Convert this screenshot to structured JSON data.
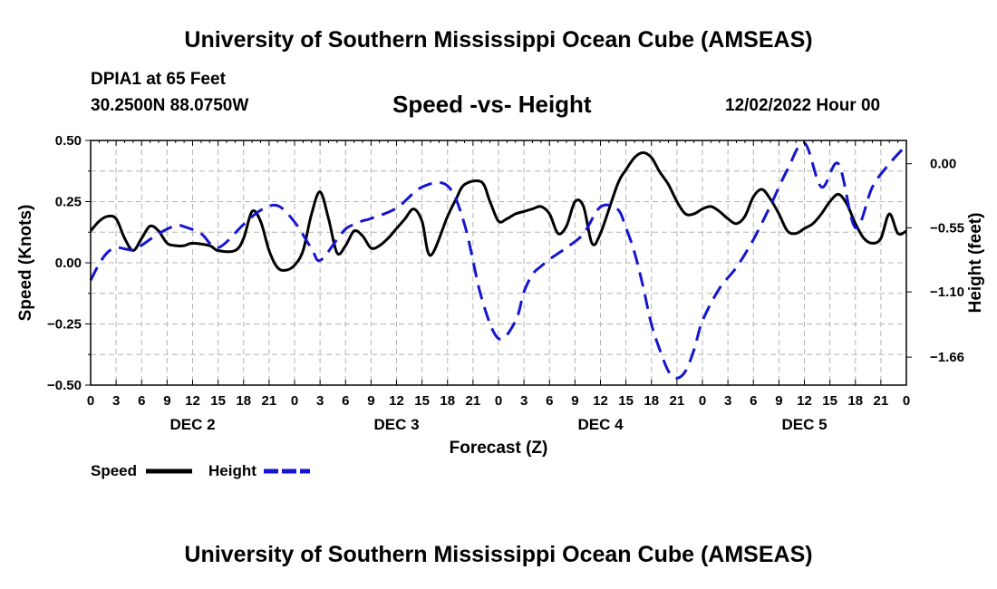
{
  "header": {
    "title": "University of Southern Mississippi Ocean Cube (AMSEAS)",
    "station": "DPIA1 at 65 Feet",
    "coordinates": "30.2500N  88.0750W",
    "chart_title": "Speed -vs- Height",
    "date": "12/02/2022 Hour 00"
  },
  "footer": {
    "title": "University of Southern Mississippi Ocean Cube (AMSEAS)"
  },
  "colors": {
    "speed": "#000000",
    "height": "#1515d0",
    "grid": "#b4b4b4"
  },
  "chart_data": {
    "type": "line",
    "title": "Speed -vs- Height",
    "xlabel": "Forecast (Z)",
    "ylabel": "Speed (Knots)",
    "y2label": "Height (feet)",
    "x_range": [
      0,
      96
    ],
    "ylim": [
      -0.5,
      0.5
    ],
    "y_ticks": [
      "0.50",
      "0.25",
      "0.00",
      "−0.25",
      "−0.50"
    ],
    "y_tick_values": [
      0.5,
      0.25,
      0.0,
      -0.25,
      -0.5
    ],
    "y2lim": [
      -1.9,
      0.2
    ],
    "y2_ticks": [
      "0.00",
      "−0.55",
      "−1.10",
      "−1.66"
    ],
    "y2_tick_values": [
      0.0,
      -0.55,
      -1.1,
      -1.66
    ],
    "x_tick_labels": [
      "0",
      "3",
      "6",
      "9",
      "12",
      "15",
      "18",
      "21",
      "0",
      "3",
      "6",
      "9",
      "12",
      "15",
      "18",
      "21",
      "0",
      "3",
      "6",
      "9",
      "12",
      "15",
      "18",
      "21",
      "0",
      "3",
      "6",
      "9",
      "12",
      "15",
      "18",
      "21",
      "0"
    ],
    "day_labels": [
      "DEC 2",
      "DEC 3",
      "DEC 4",
      "DEC 5"
    ],
    "grid": true,
    "legend": [
      {
        "name": "Speed",
        "style": "solid"
      },
      {
        "name": "Height",
        "style": "dashed"
      }
    ],
    "series": [
      {
        "name": "Speed",
        "axis": "left",
        "x": [
          0,
          1,
          2,
          3,
          4,
          5,
          6,
          7,
          8,
          9,
          10,
          11,
          12,
          14,
          15,
          17,
          18,
          19,
          20,
          21,
          22,
          23,
          24,
          25,
          26,
          27,
          28,
          29,
          30,
          31,
          32,
          33,
          34,
          35,
          36,
          37,
          38,
          39,
          40,
          42,
          43,
          44,
          46,
          47,
          48,
          49,
          50,
          51,
          52,
          53,
          54,
          55,
          56,
          57,
          58,
          59,
          60,
          62,
          63,
          64,
          65,
          66,
          67,
          68,
          69,
          70,
          71,
          72,
          73,
          74,
          75,
          76,
          77,
          78,
          79,
          80,
          81,
          82,
          83,
          84,
          85,
          86,
          87,
          88,
          89,
          90,
          91,
          92,
          93,
          94,
          95,
          96
        ],
        "values": [
          0.13,
          0.17,
          0.19,
          0.18,
          0.1,
          0.05,
          0.1,
          0.15,
          0.13,
          0.08,
          0.07,
          0.07,
          0.08,
          0.07,
          0.05,
          0.05,
          0.1,
          0.21,
          0.17,
          0.05,
          -0.02,
          -0.03,
          -0.01,
          0.05,
          0.2,
          0.29,
          0.18,
          0.04,
          0.07,
          0.13,
          0.11,
          0.06,
          0.07,
          0.1,
          0.14,
          0.18,
          0.22,
          0.17,
          0.03,
          0.19,
          0.26,
          0.32,
          0.33,
          0.25,
          0.17,
          0.18,
          0.2,
          0.21,
          0.22,
          0.23,
          0.2,
          0.12,
          0.15,
          0.25,
          0.23,
          0.08,
          0.12,
          0.32,
          0.38,
          0.43,
          0.45,
          0.43,
          0.37,
          0.32,
          0.25,
          0.2,
          0.2,
          0.22,
          0.23,
          0.21,
          0.18,
          0.16,
          0.19,
          0.27,
          0.3,
          0.26,
          0.2,
          0.13,
          0.12,
          0.14,
          0.16,
          0.2,
          0.25,
          0.28,
          0.24,
          0.16,
          0.1,
          0.08,
          0.1,
          0.2,
          0.12,
          0.13
        ]
      },
      {
        "name": "Height",
        "axis": "right",
        "x": [
          0,
          1,
          2,
          3,
          4,
          5,
          6,
          8,
          10,
          11,
          13,
          15,
          18,
          20,
          22,
          24,
          26,
          27,
          29,
          30,
          31,
          32,
          33,
          36,
          39,
          42,
          44,
          46,
          48,
          50,
          51,
          52,
          53,
          54,
          56,
          58,
          60,
          62,
          63,
          64,
          65,
          66,
          67,
          68,
          69,
          70,
          71,
          72,
          74,
          76,
          78,
          80,
          82,
          84,
          86,
          88,
          90,
          92,
          94,
          96
        ],
        "values": [
          -1.0,
          -0.86,
          -0.76,
          -0.72,
          -0.73,
          -0.74,
          -0.7,
          -0.6,
          -0.53,
          -0.54,
          -0.6,
          -0.72,
          -0.52,
          -0.4,
          -0.36,
          -0.5,
          -0.73,
          -0.83,
          -0.65,
          -0.56,
          -0.52,
          -0.49,
          -0.47,
          -0.38,
          -0.2,
          -0.19,
          -0.52,
          -1.15,
          -1.5,
          -1.35,
          -1.1,
          -0.95,
          -0.88,
          -0.82,
          -0.72,
          -0.6,
          -0.37,
          -0.39,
          -0.55,
          -0.76,
          -1.05,
          -1.38,
          -1.6,
          -1.78,
          -1.84,
          -1.78,
          -1.6,
          -1.35,
          -1.07,
          -0.89,
          -0.65,
          -0.36,
          -0.05,
          0.18,
          -0.2,
          0.0,
          -0.55,
          -0.2,
          0.0,
          0.16
        ]
      }
    ]
  }
}
